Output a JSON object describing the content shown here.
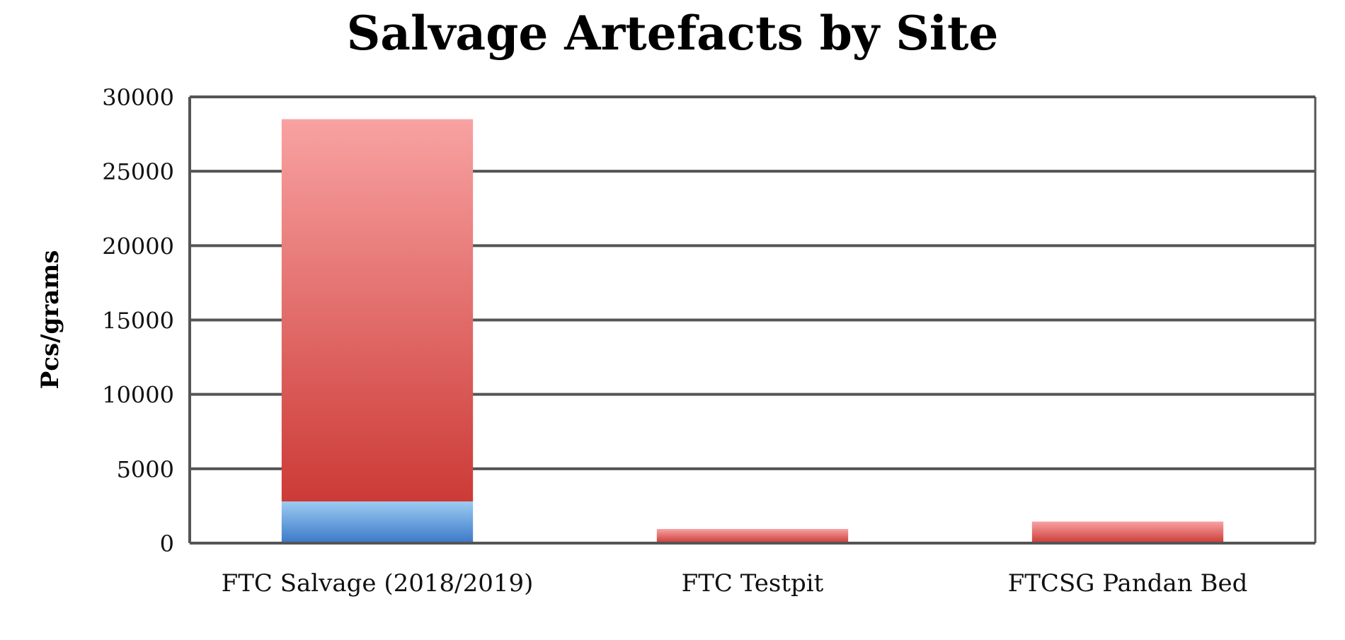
{
  "chart_data": {
    "type": "bar",
    "stacked": true,
    "title": "Salvage Artefacts by Site",
    "xlabel": "",
    "ylabel": "Pcs/grams",
    "categories": [
      "FTC Salvage (2018/2019)",
      "FTC Testpit",
      "FTCSG Pandan Bed"
    ],
    "ylim": [
      0,
      30000
    ],
    "yticks": [
      0,
      5000,
      10000,
      15000,
      20000,
      25000,
      30000
    ],
    "grid": true,
    "series": [
      {
        "values": [
          2800,
          0,
          0
        ],
        "color_top": "#9ccbf2",
        "color_bottom": "#3b78c8"
      },
      {
        "values": [
          25700,
          950,
          1450
        ],
        "color_top": "#f8a2a2",
        "color_bottom": "#cc3a36"
      }
    ]
  }
}
